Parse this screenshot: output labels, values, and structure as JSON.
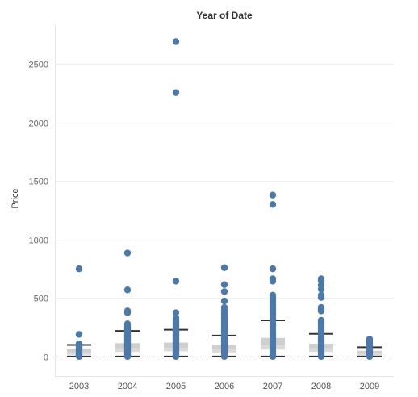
{
  "chart_data": {
    "type": "box_scatter",
    "title": "Year of Date",
    "xlabel": "",
    "ylabel": "Price",
    "categories": [
      "2003",
      "2004",
      "2005",
      "2006",
      "2007",
      "2008",
      "2009"
    ],
    "ylim": [
      0,
      2700
    ],
    "yticks": [
      0,
      500,
      1000,
      1500,
      2000,
      2500
    ],
    "grid": "horizontal",
    "colors": {
      "points": "#4e79a7",
      "box": "#d4d4d4",
      "whisker": "#333333",
      "grid": "#eeeeee",
      "zero_line": "#999999"
    },
    "boxes": [
      {
        "category": "2003",
        "whisker_low": 1,
        "q1": 15,
        "median": 35,
        "q3": 70,
        "whisker_high": 100
      },
      {
        "category": "2004",
        "whisker_low": 1,
        "q1": 40,
        "median": 70,
        "q3": 115,
        "whisker_high": 220
      },
      {
        "category": "2005",
        "whisker_low": 1,
        "q1": 45,
        "median": 75,
        "q3": 120,
        "whisker_high": 230
      },
      {
        "category": "2006",
        "whisker_low": 1,
        "q1": 35,
        "median": 65,
        "q3": 100,
        "whisker_high": 180
      },
      {
        "category": "2007",
        "whisker_low": 1,
        "q1": 60,
        "median": 95,
        "q3": 160,
        "whisker_high": 310
      },
      {
        "category": "2008",
        "whisker_low": 1,
        "q1": 40,
        "median": 70,
        "q3": 110,
        "whisker_high": 195
      },
      {
        "category": "2009",
        "whisker_low": 1,
        "q1": 10,
        "median": 25,
        "q3": 50,
        "whisker_high": 80
      }
    ],
    "points": [
      {
        "category": "2003",
        "values": [
          750,
          190,
          110,
          100,
          90,
          80,
          70,
          60,
          50,
          40,
          30,
          20,
          10,
          5,
          1
        ]
      },
      {
        "category": "2004",
        "values": [
          885,
          570,
          390,
          375,
          280,
          260,
          250,
          240,
          230,
          220,
          210,
          200,
          190,
          180,
          170,
          160,
          150,
          140,
          130,
          120,
          110,
          100,
          90,
          80,
          70,
          60,
          50,
          40,
          30,
          20,
          10,
          5,
          1
        ]
      },
      {
        "category": "2005",
        "values": [
          2690,
          2255,
          645,
          375,
          330,
          310,
          300,
          290,
          280,
          270,
          260,
          250,
          240,
          230,
          220,
          210,
          200,
          190,
          180,
          170,
          160,
          150,
          140,
          130,
          120,
          110,
          100,
          90,
          80,
          70,
          60,
          50,
          40,
          30,
          20,
          10,
          5,
          1
        ]
      },
      {
        "category": "2006",
        "values": [
          760,
          615,
          555,
          475,
          420,
          395,
          370,
          350,
          330,
          310,
          290,
          270,
          250,
          230,
          210,
          190,
          170,
          150,
          130,
          110,
          90,
          70,
          50,
          30,
          10,
          1
        ]
      },
      {
        "category": "2007",
        "values": [
          1380,
          1300,
          750,
          665,
          645,
          525,
          505,
          485,
          465,
          445,
          425,
          405,
          385,
          365,
          345,
          325,
          305,
          285,
          265,
          245,
          225,
          205,
          185,
          165,
          145,
          125,
          105,
          85,
          65,
          45,
          25,
          10,
          1
        ]
      },
      {
        "category": "2008",
        "values": [
          665,
          650,
          610,
          575,
          525,
          505,
          420,
          405,
          390,
          310,
          295,
          280,
          265,
          250,
          235,
          220,
          205,
          190,
          175,
          160,
          145,
          130,
          115,
          100,
          85,
          70,
          55,
          40,
          25,
          10,
          1
        ]
      },
      {
        "category": "2009",
        "values": [
          150,
          130,
          110,
          90,
          70,
          50,
          30,
          10,
          1
        ]
      }
    ]
  }
}
